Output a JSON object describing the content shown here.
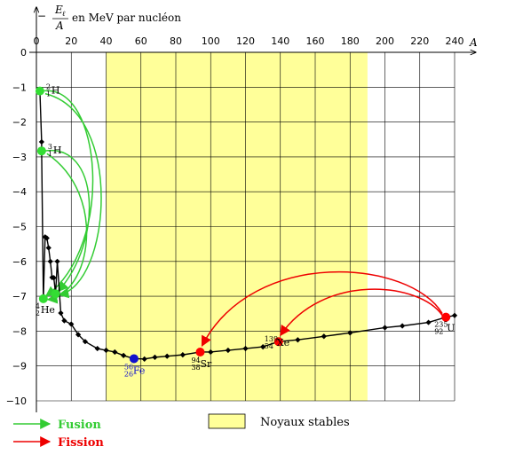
{
  "chart_data": {
    "type": "line",
    "ylabel_prefix": "−",
    "ylabel_num": "E",
    "ylabel_num_sub": "ℓ",
    "ylabel_den": "A",
    "ylabel_suffix": "en MeV par nucléon",
    "xlabel": "A",
    "xlim": [
      0,
      240
    ],
    "ylim": [
      -10,
      0
    ],
    "x_ticks": [
      0,
      20,
      40,
      60,
      80,
      100,
      120,
      140,
      160,
      180,
      200,
      220,
      240
    ],
    "y_ticks": [
      0,
      -1,
      -2,
      -3,
      -4,
      -5,
      -6,
      -7,
      -8,
      -9,
      -10
    ],
    "x_tick_labels": [
      "0",
      "20",
      "40",
      "60",
      "80",
      "100",
      "120",
      "140",
      "160",
      "180",
      "200",
      "220",
      "240"
    ],
    "y_tick_labels": [
      "0",
      "−1",
      "−2",
      "−3",
      "−4",
      "−5",
      "−6",
      "−7",
      "−8",
      "−9",
      "−10"
    ],
    "grid": true,
    "stable_band": {
      "x_range": [
        40,
        190
      ],
      "color": "#ffff99"
    },
    "series": [
      {
        "values": [
          [
            2,
            -1.11
          ],
          [
            3,
            -2.57
          ],
          [
            3,
            -2.83
          ],
          [
            4,
            -7.07
          ],
          [
            5,
            -5.3
          ],
          [
            6,
            -5.33
          ],
          [
            7,
            -5.61
          ],
          [
            8,
            -6.0
          ],
          [
            9,
            -6.46
          ],
          [
            10,
            -6.47
          ],
          [
            11,
            -6.93
          ],
          [
            12,
            -6.0
          ],
          [
            14,
            -7.48
          ],
          [
            16,
            -7.7
          ],
          [
            20,
            -7.8
          ],
          [
            24,
            -8.1
          ],
          [
            28,
            -8.3
          ],
          [
            35,
            -8.5
          ],
          [
            40,
            -8.55
          ],
          [
            45,
            -8.6
          ],
          [
            50,
            -8.7
          ],
          [
            56,
            -8.79
          ],
          [
            62,
            -8.8
          ],
          [
            68,
            -8.75
          ],
          [
            75,
            -8.72
          ],
          [
            84,
            -8.68
          ],
          [
            94,
            -8.6
          ],
          [
            100,
            -8.6
          ],
          [
            110,
            -8.55
          ],
          [
            120,
            -8.5
          ],
          [
            130,
            -8.45
          ],
          [
            139,
            -8.3
          ],
          [
            150,
            -8.25
          ],
          [
            165,
            -8.15
          ],
          [
            180,
            -8.05
          ],
          [
            200,
            -7.9
          ],
          [
            210,
            -7.85
          ],
          [
            225,
            -7.75
          ],
          [
            235,
            -7.6
          ],
          [
            240,
            -7.55
          ]
        ]
      }
    ],
    "nuclei": [
      {
        "sup": "2",
        "sub": "1",
        "sym": "H",
        "x": 2,
        "y": -1.11,
        "color": "#33dd33"
      },
      {
        "sup": "3",
        "sub": "1",
        "sym": "H",
        "x": 3,
        "y": -2.83,
        "color": "#33dd33"
      },
      {
        "sup": "4",
        "sub": "2",
        "sym": "He",
        "x": 4,
        "y": -7.07,
        "color": "#33dd33"
      },
      {
        "sup": "",
        "sub": "",
        "sym": "",
        "x": 11,
        "y": -6.93,
        "color": "#33dd33"
      },
      {
        "sup": "56",
        "sub": "26",
        "sym": "Fe",
        "x": 56,
        "y": -8.79,
        "color": "#1111cc"
      },
      {
        "sup": "94",
        "sub": "38",
        "sym": "Sr",
        "x": 94,
        "y": -8.6,
        "color": "#ff0000"
      },
      {
        "sup": "139",
        "sub": "54",
        "sym": "Xe",
        "x": 139,
        "y": -8.3,
        "color": "#ff0000"
      },
      {
        "sup": "235",
        "sub": "92",
        "sym": "U",
        "x": 235,
        "y": -7.6,
        "color": "#ff0000"
      }
    ],
    "legend": {
      "fusion": {
        "label": "Fusion",
        "color": "#33cc33"
      },
      "fission": {
        "label": "Fission",
        "color": "#ee0000"
      },
      "stable": {
        "label": "Noyaux stables",
        "color": "#ffff99"
      }
    }
  }
}
